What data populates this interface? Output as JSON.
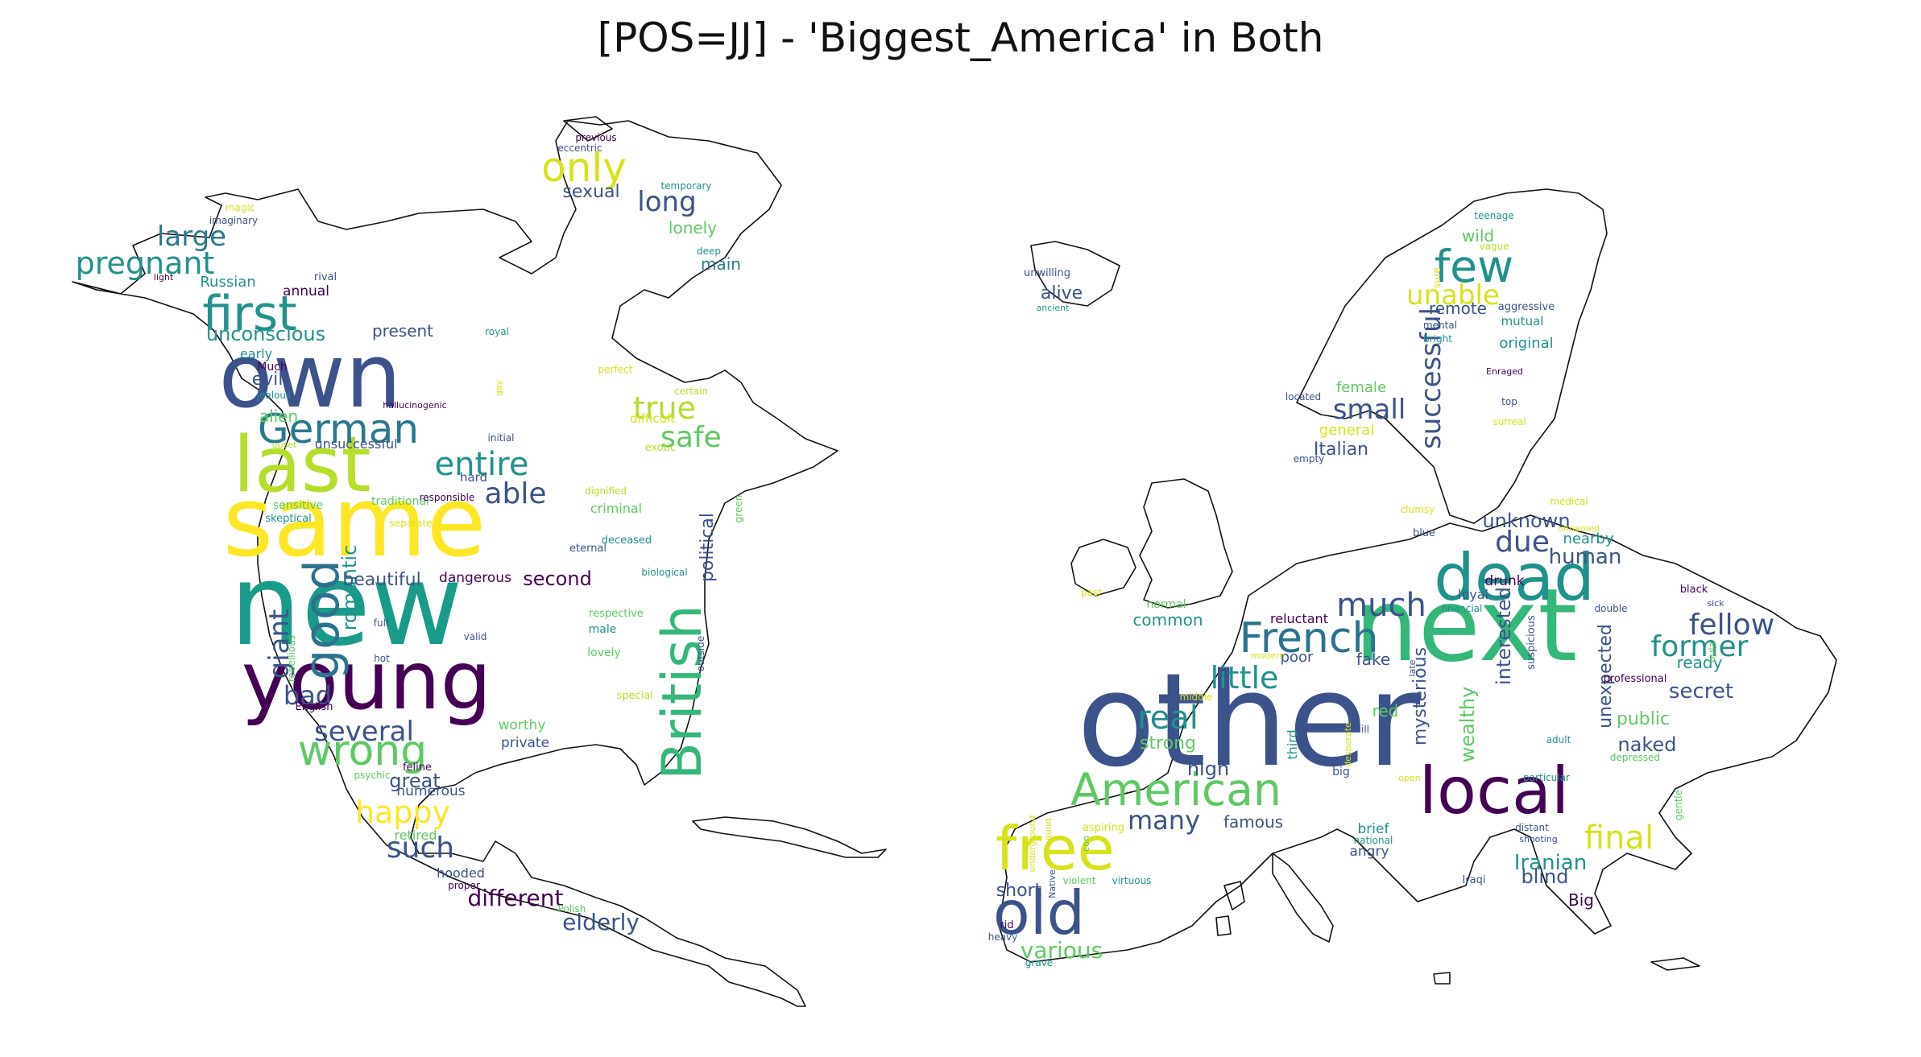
{
  "title": "[POS=JJ] - 'Biggest_America' in Both",
  "palette": [
    "#440154",
    "#3b528b",
    "#21918c",
    "#5ec962",
    "#fde725"
  ],
  "clouds": [
    {
      "region": "North America",
      "words": [
        {
          "text": "new",
          "color": "#1a9b8a"
        },
        {
          "text": "same",
          "color": "#fde725"
        },
        {
          "text": "young",
          "color": "#440154"
        },
        {
          "text": "own",
          "color": "#3b528b"
        },
        {
          "text": "last",
          "color": "#b5de2b"
        },
        {
          "text": "British",
          "color": "#35b779"
        },
        {
          "text": "good",
          "color": "#2c728e"
        },
        {
          "text": "first",
          "color": "#21918c"
        },
        {
          "text": "German",
          "color": "#2a788e"
        },
        {
          "text": "wrong",
          "color": "#5ec962"
        },
        {
          "text": "pregnant",
          "color": "#21918c"
        },
        {
          "text": "large",
          "color": "#2a788e"
        },
        {
          "text": "entire",
          "color": "#21918c"
        },
        {
          "text": "only",
          "color": "#d8e219"
        },
        {
          "text": "true",
          "color": "#b5de2b"
        },
        {
          "text": "safe",
          "color": "#5ec962"
        },
        {
          "text": "able",
          "color": "#3b528b"
        },
        {
          "text": "several",
          "color": "#3b528b"
        },
        {
          "text": "happy",
          "color": "#fde725"
        },
        {
          "text": "such",
          "color": "#3b528b"
        },
        {
          "text": "giant",
          "color": "#3b528b"
        },
        {
          "text": "bad",
          "color": "#3b528b"
        },
        {
          "text": "long",
          "color": "#3b528b"
        },
        {
          "text": "different",
          "color": "#440154"
        },
        {
          "text": "elderly",
          "color": "#3b528b"
        },
        {
          "text": "romantic",
          "color": "#21918c"
        },
        {
          "text": "unconscious",
          "color": "#21918c"
        },
        {
          "text": "political",
          "color": "#3b528b"
        },
        {
          "text": "second",
          "color": "#440154"
        },
        {
          "text": "beautiful",
          "color": "#3b528b"
        },
        {
          "text": "great",
          "color": "#3b528b"
        },
        {
          "text": "sexual",
          "color": "#3b528b"
        },
        {
          "text": "lonely",
          "color": "#5ec962"
        },
        {
          "text": "main",
          "color": "#2a788e"
        },
        {
          "text": "present",
          "color": "#3b528b"
        },
        {
          "text": "alien",
          "color": "#5ec962"
        },
        {
          "text": "evil",
          "color": "#3b528b"
        },
        {
          "text": "Russian",
          "color": "#21918c"
        },
        {
          "text": "annual",
          "color": "#440154"
        },
        {
          "text": "dangerous",
          "color": "#440154"
        },
        {
          "text": "private",
          "color": "#3b528b"
        },
        {
          "text": "worthy",
          "color": "#5ec962"
        },
        {
          "text": "numerous",
          "color": "#3b528b"
        },
        {
          "text": "retired",
          "color": "#5ec962"
        },
        {
          "text": "hooded",
          "color": "#3b528b"
        },
        {
          "text": "unsuccessful",
          "color": "#3b528b"
        },
        {
          "text": "early",
          "color": "#21918c"
        },
        {
          "text": "Much",
          "color": "#440154"
        },
        {
          "text": "jealous",
          "color": "#21918c"
        },
        {
          "text": "hard",
          "color": "#3b528b"
        },
        {
          "text": "traditional",
          "color": "#5ec962"
        },
        {
          "text": "responsible",
          "color": "#440154"
        },
        {
          "text": "criminal",
          "color": "#5ec962"
        },
        {
          "text": "deceased",
          "color": "#21918c"
        },
        {
          "text": "biological",
          "color": "#21918c"
        },
        {
          "text": "eternal",
          "color": "#3b528b"
        },
        {
          "text": "respective",
          "color": "#5ec962"
        },
        {
          "text": "male",
          "color": "#21918c"
        },
        {
          "text": "lovely",
          "color": "#5ec962"
        },
        {
          "text": "special",
          "color": "#b5de2b"
        },
        {
          "text": "outside",
          "color": "#3b528b"
        },
        {
          "text": "green",
          "color": "#5ec962"
        },
        {
          "text": "difficult",
          "color": "#d8e219"
        },
        {
          "text": "exotic",
          "color": "#b5de2b"
        },
        {
          "text": "certain",
          "color": "#b5de2b"
        },
        {
          "text": "initial",
          "color": "#3b528b"
        },
        {
          "text": "hallucinogenic",
          "color": "#440154"
        },
        {
          "text": "dignified",
          "color": "#b5de2b"
        },
        {
          "text": "separate",
          "color": "#d8e219"
        },
        {
          "text": "sensitive",
          "color": "#5ec962"
        },
        {
          "text": "skeptical",
          "color": "#21918c"
        },
        {
          "text": "upset",
          "color": "#b5de2b"
        },
        {
          "text": "full",
          "color": "#3b528b"
        },
        {
          "text": "valid",
          "color": "#3b528b"
        },
        {
          "text": "hot",
          "color": "#3b528b"
        },
        {
          "text": "rebellious",
          "color": "#5ec962"
        },
        {
          "text": "English",
          "color": "#440154"
        },
        {
          "text": "psychic",
          "color": "#5ec962"
        },
        {
          "text": "feline",
          "color": "#440154"
        },
        {
          "text": "proper",
          "color": "#440154"
        },
        {
          "text": "Polish",
          "color": "#5ec962"
        },
        {
          "text": "previous",
          "color": "#440154"
        },
        {
          "text": "eccentric",
          "color": "#3b528b"
        },
        {
          "text": "temporary",
          "color": "#21918c"
        },
        {
          "text": "deep",
          "color": "#21918c"
        },
        {
          "text": "magic",
          "color": "#d8e219"
        },
        {
          "text": "imaginary",
          "color": "#3b528b"
        },
        {
          "text": "rival",
          "color": "#3b528b"
        },
        {
          "text": "light",
          "color": "#440154"
        },
        {
          "text": "royal",
          "color": "#21918c"
        },
        {
          "text": "perfect",
          "color": "#d8e219"
        },
        {
          "text": "gay",
          "color": "#d8e219"
        }
      ]
    },
    {
      "region": "Europe",
      "words": [
        {
          "text": "other",
          "color": "#3b528b"
        },
        {
          "text": "next",
          "color": "#35b779"
        },
        {
          "text": "dead",
          "color": "#21918c"
        },
        {
          "text": "local",
          "color": "#440154"
        },
        {
          "text": "free",
          "color": "#d8e219"
        },
        {
          "text": "old",
          "color": "#3b528b"
        },
        {
          "text": "American",
          "color": "#5ec962"
        },
        {
          "text": "French",
          "color": "#2c728e"
        },
        {
          "text": "few",
          "color": "#21918c"
        },
        {
          "text": "successful",
          "color": "#3b528b"
        },
        {
          "text": "much",
          "color": "#3b528b"
        },
        {
          "text": "little",
          "color": "#21918c"
        },
        {
          "text": "real",
          "color": "#21918c"
        },
        {
          "text": "fellow",
          "color": "#3b528b"
        },
        {
          "text": "former",
          "color": "#21918c"
        },
        {
          "text": "unable",
          "color": "#d8e219"
        },
        {
          "text": "final",
          "color": "#d8e219"
        },
        {
          "text": "small",
          "color": "#3b528b"
        },
        {
          "text": "due",
          "color": "#3b528b"
        },
        {
          "text": "many",
          "color": "#3b528b"
        },
        {
          "text": "various",
          "color": "#5ec962"
        },
        {
          "text": "secret",
          "color": "#3b528b"
        },
        {
          "text": "Iranian",
          "color": "#21918c"
        },
        {
          "text": "interested",
          "color": "#3b528b"
        },
        {
          "text": "unexpected",
          "color": "#3b528b"
        },
        {
          "text": "mysterious",
          "color": "#3b528b"
        },
        {
          "text": "wealthy",
          "color": "#5ec962"
        },
        {
          "text": "human",
          "color": "#3b528b"
        },
        {
          "text": "unknown",
          "color": "#3b528b"
        },
        {
          "text": "naked",
          "color": "#3b528b"
        },
        {
          "text": "public",
          "color": "#5ec962"
        },
        {
          "text": "blind",
          "color": "#3b528b"
        },
        {
          "text": "short",
          "color": "#3b528b"
        },
        {
          "text": "high",
          "color": "#3b528b"
        },
        {
          "text": "strong",
          "color": "#5ec962"
        },
        {
          "text": "famous",
          "color": "#3b528b"
        },
        {
          "text": "common",
          "color": "#21918c"
        },
        {
          "text": "Italian",
          "color": "#3b528b"
        },
        {
          "text": "general",
          "color": "#d8e219"
        },
        {
          "text": "female",
          "color": "#5ec962"
        },
        {
          "text": "remote",
          "color": "#3b528b"
        },
        {
          "text": "original",
          "color": "#21918c"
        },
        {
          "text": "wild",
          "color": "#5ec962"
        },
        {
          "text": "alive",
          "color": "#3b528b"
        },
        {
          "text": "fake",
          "color": "#3b528b"
        },
        {
          "text": "red",
          "color": "#5ec962"
        },
        {
          "text": "poor",
          "color": "#3b528b"
        },
        {
          "text": "reluctant",
          "color": "#440154"
        },
        {
          "text": "nearby",
          "color": "#21918c"
        },
        {
          "text": "ready",
          "color": "#21918c"
        },
        {
          "text": "drunk",
          "color": "#440154"
        },
        {
          "text": "loyal",
          "color": "#3b528b"
        },
        {
          "text": "third",
          "color": "#21918c"
        },
        {
          "text": "brief",
          "color": "#21918c"
        },
        {
          "text": "angry",
          "color": "#3b528b"
        },
        {
          "text": "Big",
          "color": "#440154"
        },
        {
          "text": "mutual",
          "color": "#21918c"
        },
        {
          "text": "aggressive",
          "color": "#3b528b"
        },
        {
          "text": "vague",
          "color": "#b5de2b"
        },
        {
          "text": "teenage",
          "color": "#21918c"
        },
        {
          "text": "mental",
          "color": "#3b528b"
        },
        {
          "text": "bright",
          "color": "#21918c"
        },
        {
          "text": "sure",
          "color": "#d8e219"
        },
        {
          "text": "Enraged",
          "color": "#440154"
        },
        {
          "text": "top",
          "color": "#3b528b"
        },
        {
          "text": "surreal",
          "color": "#d8e219"
        },
        {
          "text": "located",
          "color": "#3b528b"
        },
        {
          "text": "empty",
          "color": "#3b528b"
        },
        {
          "text": "clumsy",
          "color": "#d8e219"
        },
        {
          "text": "blue",
          "color": "#3b528b"
        },
        {
          "text": "medical",
          "color": "#d8e219"
        },
        {
          "text": "unnamed",
          "color": "#d8e219"
        },
        {
          "text": "black",
          "color": "#440154"
        },
        {
          "text": "sick",
          "color": "#3b528b"
        },
        {
          "text": "double",
          "color": "#3b528b"
        },
        {
          "text": "hula",
          "color": "#5ec962"
        },
        {
          "text": "professional",
          "color": "#440154"
        },
        {
          "text": "financial",
          "color": "#21918c"
        },
        {
          "text": "suspicious",
          "color": "#3b528b"
        },
        {
          "text": "late",
          "color": "#3b528b"
        },
        {
          "text": "modern",
          "color": "#d8e219"
        },
        {
          "text": "normal",
          "color": "#5ec962"
        },
        {
          "text": "middle",
          "color": "#d8e219"
        },
        {
          "text": "past",
          "color": "#d8e219"
        },
        {
          "text": "ill",
          "color": "#3b528b"
        },
        {
          "text": "desperate",
          "color": "#d8e219"
        },
        {
          "text": "big",
          "color": "#3b528b"
        },
        {
          "text": "open",
          "color": "#d8e219"
        },
        {
          "text": "adult",
          "color": "#21918c"
        },
        {
          "text": "particular",
          "color": "#21918c"
        },
        {
          "text": "depressed",
          "color": "#5ec962"
        },
        {
          "text": "gentle",
          "color": "#5ec962"
        },
        {
          "text": "distant",
          "color": "#3b528b"
        },
        {
          "text": "shooting",
          "color": "#3b528b"
        },
        {
          "text": "national",
          "color": "#21918c"
        },
        {
          "text": "aspiring",
          "color": "#d8e219"
        },
        {
          "text": "violent",
          "color": "#5ec962"
        },
        {
          "text": "virtuous",
          "color": "#21918c"
        },
        {
          "text": "con",
          "color": "#5ec962"
        },
        {
          "text": "quiet",
          "color": "#d8e219"
        },
        {
          "text": "underground",
          "color": "#d8e219"
        },
        {
          "text": "Native",
          "color": "#3b528b"
        },
        {
          "text": "rid",
          "color": "#440154"
        },
        {
          "text": "heavy",
          "color": "#3b528b"
        },
        {
          "text": "grave",
          "color": "#21918c"
        },
        {
          "text": "Iraqi",
          "color": "#3b528b"
        },
        {
          "text": "unwilling",
          "color": "#3b528b"
        },
        {
          "text": "ancient",
          "color": "#21918c"
        }
      ]
    }
  ]
}
